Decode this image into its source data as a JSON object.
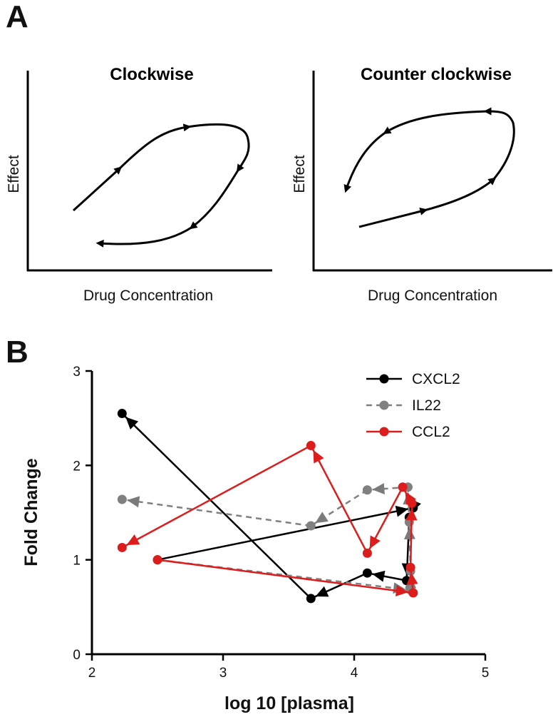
{
  "panel_a": {
    "letter": "A",
    "left": {
      "title": "Clockwise",
      "xlabel": "Drug Concentration",
      "ylabel": "Effect"
    },
    "right": {
      "title": "Counter clockwise",
      "xlabel": "Drug Concentration",
      "ylabel": "Effect"
    }
  },
  "panel_b": {
    "letter": "B"
  },
  "chart_data": {
    "type": "line",
    "title": "",
    "xlabel": "log 10 [plasma]",
    "ylabel": "Fold Change",
    "xlim": [
      2,
      5
    ],
    "ylim": [
      0,
      3
    ],
    "x_ticks": [
      "2",
      "3",
      "4",
      "5"
    ],
    "y_ticks": [
      "0",
      "1",
      "2",
      "3"
    ],
    "legend": "top-right",
    "series": [
      {
        "name": "CXCL2",
        "color": "#000000",
        "dash": "solid",
        "points": [
          [
            2.5,
            1.0
          ],
          [
            4.45,
            1.55
          ],
          [
            4.42,
            1.45
          ],
          [
            4.4,
            0.78
          ],
          [
            4.1,
            0.86
          ],
          [
            3.67,
            0.59
          ],
          [
            2.23,
            2.55
          ]
        ]
      },
      {
        "name": "IL22",
        "color": "#808080",
        "dash": "dashed",
        "points": [
          [
            2.5,
            1.0
          ],
          [
            4.43,
            0.68
          ],
          [
            4.43,
            0.88
          ],
          [
            4.42,
            1.4
          ],
          [
            4.41,
            1.77
          ],
          [
            4.1,
            1.74
          ],
          [
            3.67,
            1.36
          ],
          [
            2.23,
            1.64
          ]
        ]
      },
      {
        "name": "CCL2",
        "color": "#dd1c1c",
        "dash": "solid",
        "points": [
          [
            2.5,
            1.0
          ],
          [
            4.45,
            0.65
          ],
          [
            4.43,
            0.92
          ],
          [
            4.44,
            1.6
          ],
          [
            4.37,
            1.77
          ],
          [
            4.1,
            1.07
          ],
          [
            3.67,
            2.21
          ],
          [
            2.23,
            1.13
          ]
        ]
      }
    ]
  }
}
